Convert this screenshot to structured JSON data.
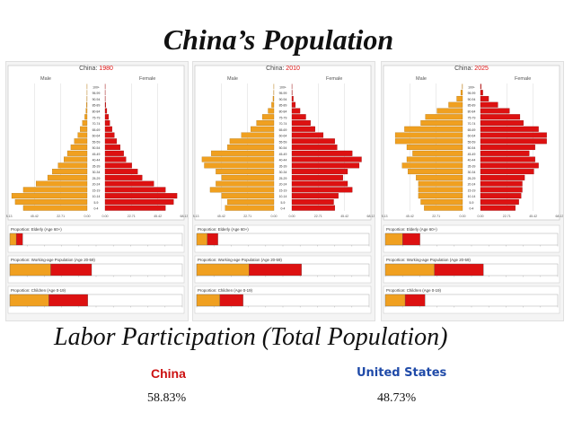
{
  "title": "China’s Population",
  "subtitle": "Labor Participation (Total Population)",
  "colors": {
    "male": "#f0a020",
    "female": "#dd1111",
    "china": "#cc1111",
    "us": "#1f4aa8"
  },
  "comparison": [
    {
      "country": "China",
      "value": "58.83%"
    },
    {
      "country": "United States",
      "value": "48.73%"
    }
  ],
  "chart_data": [
    {
      "type": "bar",
      "subtype": "population-pyramid",
      "title": "China: 1980",
      "year": "1980",
      "left_label": "Male",
      "right_label": "Female",
      "age_groups": [
        "0-4",
        "5-9",
        "10-14",
        "15-19",
        "20-24",
        "25-29",
        "30-34",
        "35-39",
        "40-44",
        "45-49",
        "50-54",
        "55-59",
        "60-64",
        "65-69",
        "70-74",
        "75-79",
        "80-84",
        "85-89",
        "90-94",
        "95-99",
        "100+"
      ],
      "male": [
        55,
        62,
        65,
        55,
        44,
        34,
        30,
        25,
        20,
        17,
        14,
        11,
        8,
        6,
        4,
        2,
        1,
        0.5,
        0.2,
        0.1,
        0.1
      ],
      "female": [
        52,
        59,
        62,
        52,
        42,
        32,
        28,
        23,
        18,
        16,
        13,
        10,
        8,
        6,
        4,
        3,
        1.5,
        0.6,
        0.2,
        0.1,
        0.1
      ],
      "x_ticks": [
        "68.13",
        "45.42",
        "22.71",
        "0.00",
        "0.00",
        "22.71",
        "45.42",
        "68.13"
      ],
      "xlim": [
        -68.13,
        68.13
      ],
      "proportion_titles": [
        "Proportion: Elderly (Age 60+)",
        "Proportion: Working-age Population (Age 20-59)",
        "Proportion: Children (Age 0-19)"
      ],
      "proportions": [
        7.4,
        47.4,
        45.2
      ]
    },
    {
      "type": "bar",
      "subtype": "population-pyramid",
      "title": "China: 2010",
      "year": "2010",
      "left_label": "Male",
      "right_label": "Female",
      "age_groups": [
        "0-4",
        "5-9",
        "10-14",
        "15-19",
        "20-24",
        "25-29",
        "30-34",
        "35-39",
        "40-44",
        "45-49",
        "50-54",
        "55-59",
        "60-64",
        "65-69",
        "70-74",
        "75-79",
        "80-84",
        "85-89",
        "90-94",
        "95-99",
        "100+"
      ],
      "male": [
        42,
        40,
        45,
        55,
        50,
        45,
        50,
        60,
        62,
        54,
        40,
        38,
        28,
        20,
        15,
        10,
        5,
        2,
        0.8,
        0.2,
        0.1
      ],
      "female": [
        37,
        36,
        40,
        52,
        48,
        44,
        48,
        58,
        60,
        52,
        39,
        37,
        27,
        20,
        16,
        12,
        7,
        3,
        1.2,
        0.3,
        0.1
      ],
      "x_ticks": [
        "68.13",
        "45.42",
        "22.71",
        "0.00",
        "0.00",
        "22.71",
        "45.42",
        "68.13"
      ],
      "xlim": [
        -68.13,
        68.13
      ],
      "proportion_titles": [
        "Proportion: Elderly (Age 60+)",
        "Proportion: Working-age Population (Age 20-59)",
        "Proportion: Children (Age 0-19)"
      ],
      "proportions": [
        12.3,
        60.8,
        26.9
      ]
    },
    {
      "type": "bar",
      "subtype": "population-pyramid",
      "title": "China: 2025",
      "year": "2025",
      "left_label": "Male",
      "right_label": "Female",
      "age_groups": [
        "0-4",
        "5-9",
        "10-14",
        "15-19",
        "20-24",
        "25-29",
        "30-34",
        "35-39",
        "40-44",
        "45-49",
        "50-54",
        "55-59",
        "60-64",
        "65-69",
        "70-74",
        "75-79",
        "80-84",
        "85-89",
        "90-94",
        "95-99",
        "100+"
      ],
      "male": [
        33,
        36,
        38,
        38,
        38,
        40,
        47,
        52,
        48,
        43,
        48,
        58,
        58,
        50,
        36,
        32,
        22,
        12,
        5,
        1.5,
        0.3
      ],
      "female": [
        30,
        33,
        35,
        36,
        36,
        38,
        46,
        50,
        47,
        42,
        47,
        57,
        57,
        50,
        37,
        34,
        25,
        15,
        7,
        2,
        0.5
      ],
      "x_ticks": [
        "68.13",
        "45.42",
        "22.71",
        "0.00",
        "0.00",
        "22.71",
        "45.42",
        "68.13"
      ],
      "xlim": [
        -68.13,
        68.13
      ],
      "proportion_titles": [
        "Proportion: Elderly (Age 60+)",
        "Proportion: Working-age Population (Age 20-59)",
        "Proportion: Children (Age 0-19)"
      ],
      "proportions": [
        20.1,
        56.9,
        23.0
      ]
    }
  ]
}
